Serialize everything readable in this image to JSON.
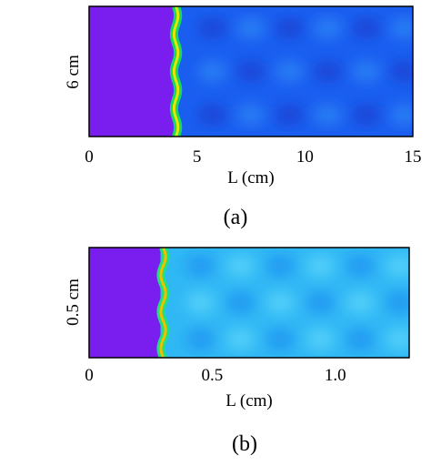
{
  "figure": {
    "panels": [
      {
        "id": "a",
        "caption": "(a)",
        "ylabel": "6 cm",
        "xlabel": "L (cm)",
        "xlim": [
          0,
          15
        ],
        "xticks": [
          {
            "value": 0,
            "label": "0"
          },
          {
            "value": 5,
            "label": "5"
          },
          {
            "value": 10,
            "label": "10"
          },
          {
            "value": 15,
            "label": "15"
          }
        ],
        "front_position": 3.9,
        "colors": {
          "region": "#7a1ef0",
          "front_core": "#e6e600",
          "front_edge": "#18d860",
          "field": "#1a5ef0",
          "field_light": "#2f86f5",
          "field_dark": "#1740d0"
        }
      },
      {
        "id": "b",
        "caption": "(b)",
        "ylabel": "0.5 cm",
        "xlabel": "L (cm)",
        "xlim": [
          0,
          1.3
        ],
        "xticks": [
          {
            "value": 0,
            "label": "0"
          },
          {
            "value": 0.5,
            "label": "0.5"
          },
          {
            "value": 1.0,
            "label": "1.0"
          }
        ],
        "front_position": 0.29,
        "colors": {
          "region": "#7a1ef0",
          "front_core": "#f0c000",
          "front_edge": "#20e080",
          "field": "#30b8f5",
          "field_light": "#60d8fa",
          "field_dark": "#1e8ef0"
        }
      }
    ]
  }
}
